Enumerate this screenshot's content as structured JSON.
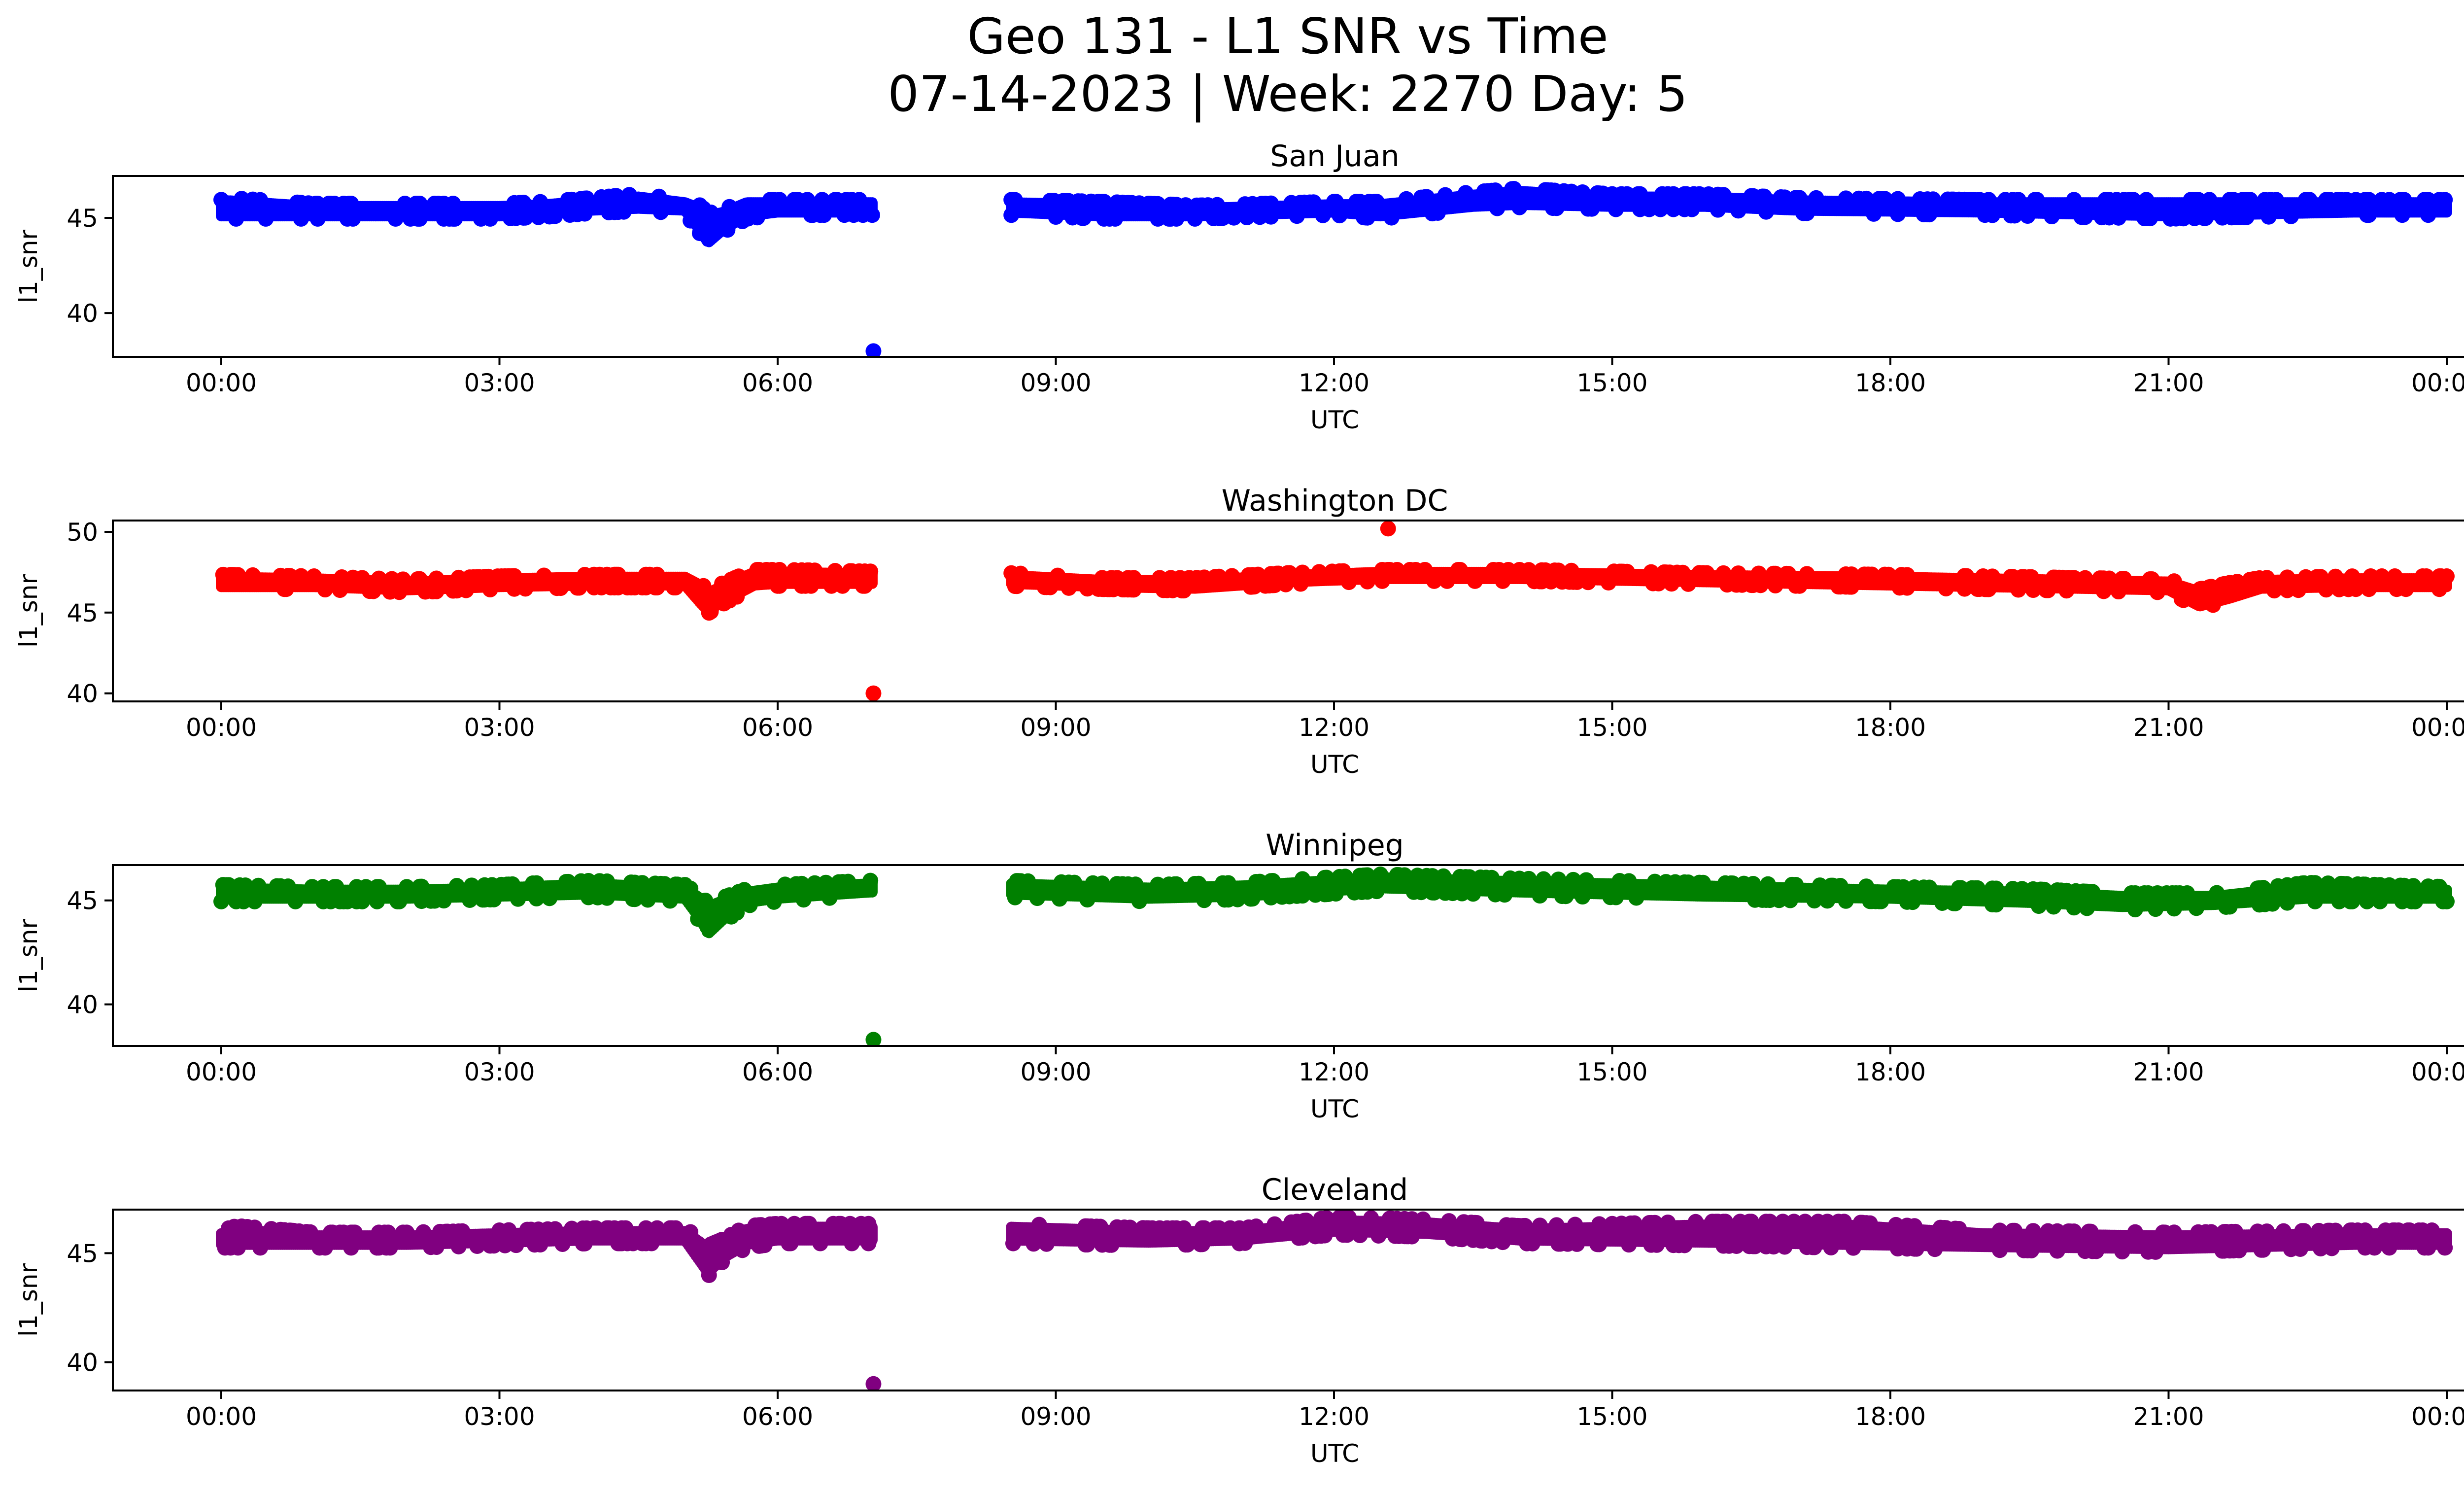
{
  "figure": {
    "title_line1": "Geo 131 - L1 SNR vs Time",
    "title_line2": "07-14-2023 | Week: 2270 Day: 5"
  },
  "chart_data": [
    {
      "type": "scatter",
      "title": "San Juan",
      "xlabel": "UTC",
      "ylabel": "l1_snr",
      "color": "#0000ff",
      "xlim": [
        "23:35",
        "24:24"
      ],
      "ylim": [
        37.7,
        47.2
      ],
      "xticks": [
        "00:00",
        "03:00",
        "06:00",
        "09:00",
        "12:00",
        "15:00",
        "18:00",
        "21:00",
        "00:00"
      ],
      "yticks": [
        40,
        45
      ],
      "gap": [
        "07:02",
        "08:30"
      ],
      "band": [
        {
          "t": "00:00",
          "lo": 45.0,
          "hi": 45.9
        },
        {
          "t": "00:05",
          "lo": 45.0,
          "hi": 46.0
        },
        {
          "t": "01:00",
          "lo": 45.0,
          "hi": 45.7
        },
        {
          "t": "02:00",
          "lo": 45.0,
          "hi": 45.7
        },
        {
          "t": "03:00",
          "lo": 45.0,
          "hi": 45.7
        },
        {
          "t": "03:30",
          "lo": 45.1,
          "hi": 45.8
        },
        {
          "t": "04:00",
          "lo": 45.3,
          "hi": 46.0
        },
        {
          "t": "04:30",
          "lo": 45.4,
          "hi": 46.2
        },
        {
          "t": "05:00",
          "lo": 45.3,
          "hi": 45.9
        },
        {
          "t": "05:10",
          "lo": 44.2,
          "hi": 45.6
        },
        {
          "t": "05:15",
          "lo": 43.6,
          "hi": 45.2
        },
        {
          "t": "05:25",
          "lo": 44.3,
          "hi": 45.4
        },
        {
          "t": "05:40",
          "lo": 45.0,
          "hi": 45.9
        },
        {
          "t": "06:00",
          "lo": 45.2,
          "hi": 45.9
        },
        {
          "t": "07:00",
          "lo": 45.2,
          "hi": 45.9
        },
        {
          "t": "08:30",
          "lo": 45.2,
          "hi": 45.9
        },
        {
          "t": "09:30",
          "lo": 45.0,
          "hi": 45.8
        },
        {
          "t": "10:30",
          "lo": 45.0,
          "hi": 45.6
        },
        {
          "t": "12:00",
          "lo": 45.2,
          "hi": 45.8
        },
        {
          "t": "12:30",
          "lo": 45.0,
          "hi": 45.8
        },
        {
          "t": "13:30",
          "lo": 45.5,
          "hi": 46.3
        },
        {
          "t": "14:00",
          "lo": 45.6,
          "hi": 46.5
        },
        {
          "t": "15:00",
          "lo": 45.5,
          "hi": 46.2
        },
        {
          "t": "16:00",
          "lo": 45.5,
          "hi": 46.2
        },
        {
          "t": "17:00",
          "lo": 45.3,
          "hi": 46.0
        },
        {
          "t": "19:00",
          "lo": 45.2,
          "hi": 45.9
        },
        {
          "t": "21:00",
          "lo": 45.0,
          "hi": 45.9
        },
        {
          "t": "23:00",
          "lo": 45.2,
          "hi": 45.9
        },
        {
          "t": "24:00",
          "lo": 45.2,
          "hi": 45.9
        }
      ],
      "outliers": [
        {
          "t": "07:02",
          "y": 38.0
        }
      ]
    },
    {
      "type": "scatter",
      "title": "Washington DC",
      "xlabel": "UTC",
      "ylabel": "l1_snr",
      "color": "#ff0000",
      "xlim": [
        "23:35",
        "24:24"
      ],
      "ylim": [
        39.5,
        50.7
      ],
      "xticks": [
        "00:00",
        "03:00",
        "06:00",
        "09:00",
        "12:00",
        "15:00",
        "18:00",
        "21:00",
        "00:00"
      ],
      "yticks": [
        40,
        45,
        50
      ],
      "gap": [
        "07:02",
        "08:30"
      ],
      "band": [
        {
          "t": "00:00",
          "lo": 46.5,
          "hi": 47.3
        },
        {
          "t": "01:00",
          "lo": 46.5,
          "hi": 47.2
        },
        {
          "t": "02:00",
          "lo": 46.3,
          "hi": 47.0
        },
        {
          "t": "03:00",
          "lo": 46.5,
          "hi": 47.2
        },
        {
          "t": "04:00",
          "lo": 46.6,
          "hi": 47.3
        },
        {
          "t": "05:00",
          "lo": 46.6,
          "hi": 47.3
        },
        {
          "t": "05:10",
          "lo": 45.5,
          "hi": 46.8
        },
        {
          "t": "05:15",
          "lo": 45.0,
          "hi": 46.3
        },
        {
          "t": "05:25",
          "lo": 45.6,
          "hi": 46.8
        },
        {
          "t": "05:45",
          "lo": 46.6,
          "hi": 47.6
        },
        {
          "t": "06:00",
          "lo": 46.7,
          "hi": 47.6
        },
        {
          "t": "07:00",
          "lo": 46.7,
          "hi": 47.5
        },
        {
          "t": "08:30",
          "lo": 46.7,
          "hi": 47.4
        },
        {
          "t": "09:30",
          "lo": 46.5,
          "hi": 47.1
        },
        {
          "t": "10:30",
          "lo": 46.4,
          "hi": 47.1
        },
        {
          "t": "11:30",
          "lo": 46.8,
          "hi": 47.4
        },
        {
          "t": "12:30",
          "lo": 47.0,
          "hi": 47.6
        },
        {
          "t": "14:00",
          "lo": 47.0,
          "hi": 47.6
        },
        {
          "t": "16:00",
          "lo": 46.8,
          "hi": 47.4
        },
        {
          "t": "18:00",
          "lo": 46.6,
          "hi": 47.3
        },
        {
          "t": "20:00",
          "lo": 46.4,
          "hi": 47.1
        },
        {
          "t": "21:00",
          "lo": 46.3,
          "hi": 47.0
        },
        {
          "t": "21:20",
          "lo": 45.3,
          "hi": 46.4
        },
        {
          "t": "21:40",
          "lo": 45.8,
          "hi": 46.8
        },
        {
          "t": "22:00",
          "lo": 46.4,
          "hi": 47.1
        },
        {
          "t": "23:00",
          "lo": 46.5,
          "hi": 47.2
        },
        {
          "t": "24:00",
          "lo": 46.5,
          "hi": 47.2
        }
      ],
      "outliers": [
        {
          "t": "07:02",
          "y": 40.0
        },
        {
          "t": "12:35",
          "y": 50.2
        }
      ]
    },
    {
      "type": "scatter",
      "title": "Winnipeg",
      "xlabel": "UTC",
      "ylabel": "l1_snr",
      "color": "#008000",
      "xlim": [
        "23:35",
        "24:24"
      ],
      "ylim": [
        38.0,
        46.7
      ],
      "xticks": [
        "00:00",
        "03:00",
        "06:00",
        "09:00",
        "12:00",
        "15:00",
        "18:00",
        "21:00",
        "00:00"
      ],
      "yticks": [
        40,
        45
      ],
      "gap": [
        "07:02",
        "08:30"
      ],
      "band": [
        {
          "t": "00:00",
          "lo": 45.0,
          "hi": 45.7
        },
        {
          "t": "01:00",
          "lo": 45.0,
          "hi": 45.6
        },
        {
          "t": "02:00",
          "lo": 45.0,
          "hi": 45.6
        },
        {
          "t": "03:00",
          "lo": 45.1,
          "hi": 45.7
        },
        {
          "t": "04:00",
          "lo": 45.2,
          "hi": 45.9
        },
        {
          "t": "05:00",
          "lo": 45.0,
          "hi": 45.7
        },
        {
          "t": "05:10",
          "lo": 44.0,
          "hi": 45.2
        },
        {
          "t": "05:15",
          "lo": 43.3,
          "hi": 44.8
        },
        {
          "t": "05:25",
          "lo": 44.0,
          "hi": 45.1
        },
        {
          "t": "05:40",
          "lo": 44.8,
          "hi": 45.5
        },
        {
          "t": "06:00",
          "lo": 45.0,
          "hi": 45.7
        },
        {
          "t": "07:00",
          "lo": 45.3,
          "hi": 45.9
        },
        {
          "t": "08:30",
          "lo": 45.2,
          "hi": 45.9
        },
        {
          "t": "10:00",
          "lo": 45.0,
          "hi": 45.7
        },
        {
          "t": "11:00",
          "lo": 45.1,
          "hi": 45.8
        },
        {
          "t": "12:30",
          "lo": 45.5,
          "hi": 46.2
        },
        {
          "t": "14:00",
          "lo": 45.3,
          "hi": 46.0
        },
        {
          "t": "16:00",
          "lo": 45.1,
          "hi": 45.8
        },
        {
          "t": "18:00",
          "lo": 45.0,
          "hi": 45.6
        },
        {
          "t": "19:30",
          "lo": 44.8,
          "hi": 45.5
        },
        {
          "t": "20:30",
          "lo": 44.6,
          "hi": 45.3
        },
        {
          "t": "21:30",
          "lo": 44.7,
          "hi": 45.3
        },
        {
          "t": "22:30",
          "lo": 45.0,
          "hi": 45.8
        },
        {
          "t": "24:00",
          "lo": 45.0,
          "hi": 45.6
        }
      ],
      "outliers": [
        {
          "t": "07:02",
          "y": 38.3
        }
      ]
    },
    {
      "type": "scatter",
      "title": "Cleveland",
      "xlabel": "UTC",
      "ylabel": "l1_snr",
      "color": "#800080",
      "xlim": [
        "23:35",
        "24:24"
      ],
      "ylim": [
        38.7,
        47.0
      ],
      "xticks": [
        "00:00",
        "03:00",
        "06:00",
        "09:00",
        "12:00",
        "15:00",
        "18:00",
        "21:00",
        "00:00"
      ],
      "yticks": [
        40,
        45
      ],
      "gap": [
        "07:02",
        "08:30"
      ],
      "band": [
        {
          "t": "00:00",
          "lo": 45.3,
          "hi": 46.0
        },
        {
          "t": "00:10",
          "lo": 45.3,
          "hi": 46.2
        },
        {
          "t": "01:00",
          "lo": 45.3,
          "hi": 45.9
        },
        {
          "t": "02:00",
          "lo": 45.3,
          "hi": 45.9
        },
        {
          "t": "03:00",
          "lo": 45.4,
          "hi": 46.0
        },
        {
          "t": "04:00",
          "lo": 45.5,
          "hi": 46.1
        },
        {
          "t": "05:00",
          "lo": 45.5,
          "hi": 46.1
        },
        {
          "t": "05:10",
          "lo": 44.5,
          "hi": 45.6
        },
        {
          "t": "05:15",
          "lo": 44.0,
          "hi": 45.3
        },
        {
          "t": "05:25",
          "lo": 44.7,
          "hi": 45.6
        },
        {
          "t": "05:40",
          "lo": 45.3,
          "hi": 46.2
        },
        {
          "t": "06:00",
          "lo": 45.5,
          "hi": 46.3
        },
        {
          "t": "07:00",
          "lo": 45.5,
          "hi": 46.3
        },
        {
          "t": "08:30",
          "lo": 45.5,
          "hi": 46.3
        },
        {
          "t": "10:00",
          "lo": 45.4,
          "hi": 46.1
        },
        {
          "t": "11:00",
          "lo": 45.5,
          "hi": 46.1
        },
        {
          "t": "12:00",
          "lo": 45.9,
          "hi": 46.6
        },
        {
          "t": "13:00",
          "lo": 45.8,
          "hi": 46.5
        },
        {
          "t": "14:00",
          "lo": 45.5,
          "hi": 46.2
        },
        {
          "t": "16:00",
          "lo": 45.4,
          "hi": 46.4
        },
        {
          "t": "17:30",
          "lo": 45.3,
          "hi": 46.4
        },
        {
          "t": "19:00",
          "lo": 45.2,
          "hi": 46.0
        },
        {
          "t": "21:00",
          "lo": 45.1,
          "hi": 45.9
        },
        {
          "t": "23:00",
          "lo": 45.3,
          "hi": 46.0
        },
        {
          "t": "24:00",
          "lo": 45.3,
          "hi": 46.0
        }
      ],
      "outliers": [
        {
          "t": "07:02",
          "y": 39.0
        }
      ]
    }
  ]
}
